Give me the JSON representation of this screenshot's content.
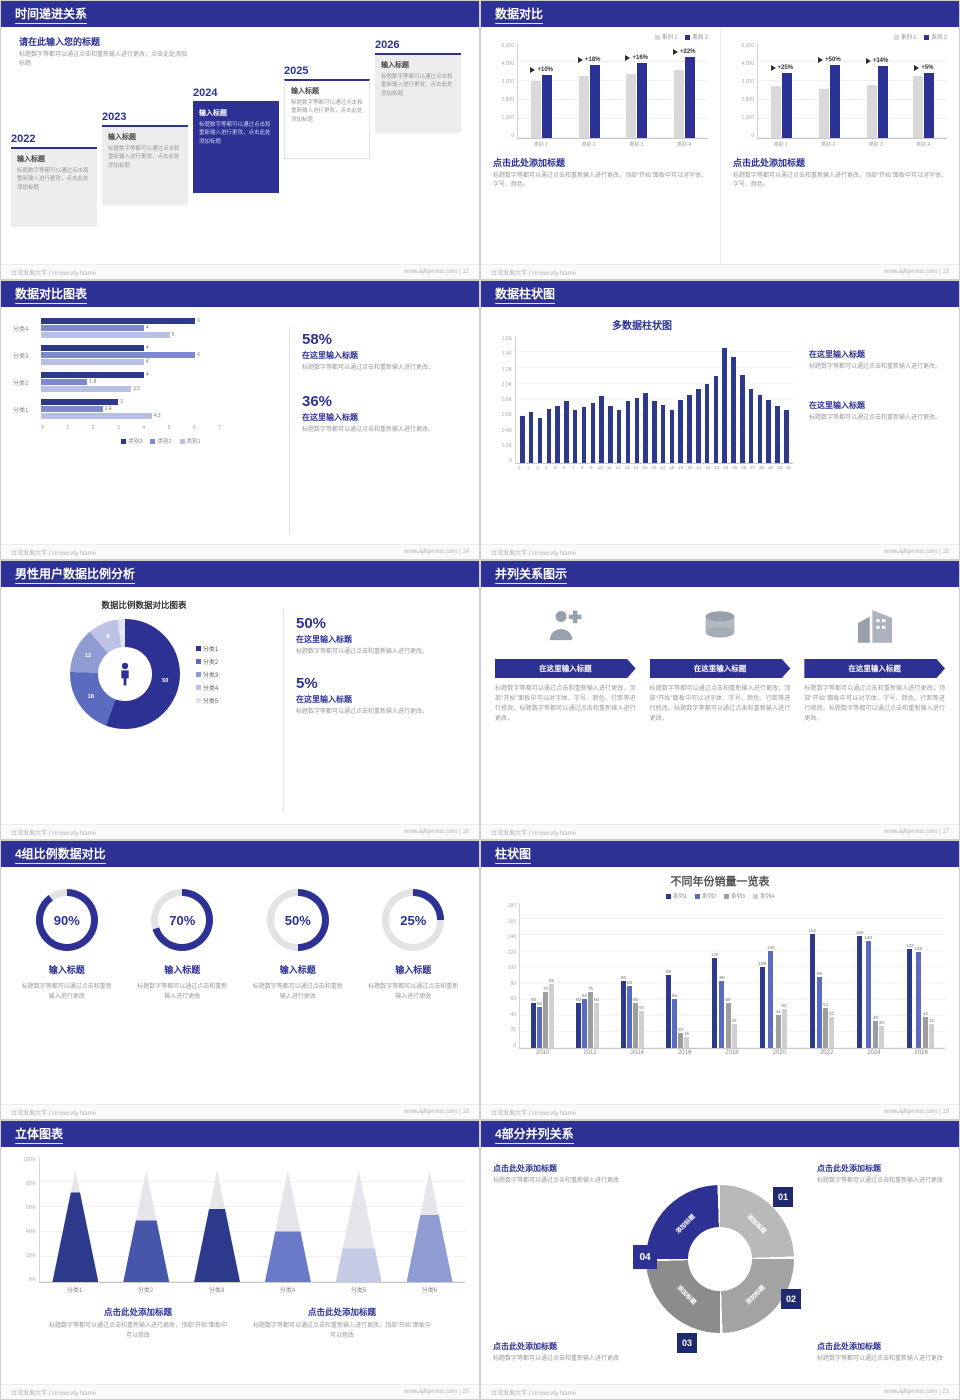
{
  "footer": {
    "university": "台湾发展大学 | University Name",
    "site": "www.aptgenius.com",
    "sep": " | "
  },
  "colors": {
    "primary": "#2d3194",
    "bar_navy": "#2d3a8c",
    "bar_blue": "#5b6bbf",
    "bar_periwinkle": "#8f9bd3",
    "bar_light": "#c0c7e6",
    "bar_gray": "#d9d9d9",
    "text_gray": "#999999"
  },
  "slides": {
    "timeline": {
      "page": "12",
      "title": "时间递进关系",
      "heading": "请在此输入您的标题",
      "subheading": "标题数字等都可以通过点击和重新输入进行更改，点击此处添加标题",
      "item_title": "输入标题",
      "item_body": "标题数字等都可以通过点击和重新输入进行更改，点击此处添加标题",
      "years": [
        "2022",
        "2023",
        "2024",
        "2025",
        "2026"
      ]
    },
    "compare": {
      "page": "13",
      "title": "数据对比",
      "charts": [
        {
          "legend": [
            "系列 1",
            "系列 2"
          ],
          "categories": [
            "类别 1",
            "类别 2",
            "类别 3",
            "类别 4"
          ],
          "max": 5000,
          "yticks": [
            "5,000",
            "4,000",
            "3,000",
            "2,000",
            "1,000",
            "0"
          ],
          "series": [
            {
              "name": "系列 1",
              "color": "#d9d9d9",
              "values": [
                3500,
                3800,
                3950,
                4200
              ]
            },
            {
              "name": "系列 2",
              "color": "#2d3194",
              "values": [
                3900,
                4500,
                4600,
                5000
              ]
            }
          ],
          "growth": [
            "+10%",
            "+18%",
            "+16%",
            "+22%"
          ],
          "heading": "点击此处添加标题",
          "body": "标题数字等都可以通过点击和重新输入进行更改，顶部“开始”面板中可以对字体、字号、颜色。"
        },
        {
          "legend": [
            "系列 1",
            "系列 2"
          ],
          "categories": [
            "类别 1",
            "类别 2",
            "类别 3",
            "类别 4"
          ],
          "max": 5000,
          "yticks": [
            "5,000",
            "4,000",
            "3,000",
            "2,000",
            "1,000",
            "0"
          ],
          "series": [
            {
              "name": "系列 1",
              "color": "#d9d9d9",
              "values": [
                3200,
                3000,
                3300,
                3800
              ]
            },
            {
              "name": "系列 2",
              "color": "#2d3194",
              "values": [
                4000,
                4500,
                4420,
                4000
              ]
            }
          ],
          "growth": [
            "+25%",
            "+50%",
            "+34%",
            "+5%"
          ],
          "heading": "点击此处添加标题",
          "body": "标题数字等都可以通过点击和重新输入进行更改，顶部“开始”面板中可以对字体、字号、颜色。"
        }
      ]
    },
    "hbars": {
      "page": "14",
      "title": "数据对比图表",
      "categories": [
        "分类4",
        "分类3",
        "分类2",
        "分类1"
      ],
      "groups": [
        [
          6,
          4,
          5
        ],
        [
          4,
          6,
          4
        ],
        [
          4,
          1.8,
          3.5
        ],
        [
          3,
          2.4,
          4.3
        ]
      ],
      "max": 7,
      "xticks": [
        "0",
        "1",
        "2",
        "3",
        "4",
        "5",
        "6",
        "7"
      ],
      "colors": [
        "#2d3a8c",
        "#7c89cc",
        "#b7bfe4"
      ],
      "legend": [
        "类别3",
        "类别2",
        "类别1"
      ],
      "stats": [
        {
          "pct": "58%",
          "heading": "在这里输入标题",
          "body": "标题数字等都可以通过点击和重新输入进行更改。"
        },
        {
          "pct": "36%",
          "heading": "在这里输入标题",
          "body": "标题数字等都可以通过点击和重新输入进行更改。"
        }
      ]
    },
    "multicol": {
      "page": "15",
      "title": "数据柱状图",
      "chart_title": "多数据柱状图",
      "max": 1600,
      "yticks": [
        "1.6K",
        "1.4K",
        "1.2K",
        "1.0K",
        "0.8K",
        "0.6K",
        "0.4K",
        "0.2K",
        "0"
      ],
      "labels": [
        "1",
        "2",
        "3",
        "4",
        "5",
        "6",
        "7",
        "8",
        "9",
        "10",
        "11",
        "12",
        "13",
        "14",
        "15",
        "16",
        "17",
        "18",
        "19",
        "20",
        "21",
        "22",
        "23",
        "24",
        "25",
        "26",
        "27",
        "28",
        "29",
        "30",
        "31"
      ],
      "values": [
        620,
        680,
        600,
        720,
        760,
        820,
        700,
        740,
        800,
        880,
        760,
        700,
        820,
        860,
        930,
        820,
        770,
        700,
        830,
        900,
        980,
        1050,
        1150,
        1520,
        1400,
        1160,
        980,
        900,
        830,
        760,
        700
      ],
      "bar_color": "#2d3a8c",
      "stats": [
        {
          "heading": "在这里输入标题",
          "body": "标题数字等都可以通过点击和重新输入进行更改。"
        },
        {
          "heading": "在这里输入标题",
          "body": "标题数字等都可以通过点击和重新输入进行更改。"
        }
      ]
    },
    "donut": {
      "page": "16",
      "title": "男性用户数据比例分析",
      "heading": "数据比例数据对比图表",
      "segments": [
        {
          "label": "50",
          "value": 50
        },
        {
          "label": "18",
          "value": 18
        },
        {
          "label": "12",
          "value": 12
        },
        {
          "label": "8",
          "value": 8
        },
        {
          "label": "2",
          "value": 2
        }
      ],
      "colors": [
        "#2d3194",
        "#5b6bbf",
        "#8f9bd3",
        "#bcc3e5",
        "#dfe2f2"
      ],
      "legend": [
        "分类1",
        "分类2",
        "分类3",
        "分类4",
        "分类5"
      ],
      "stats": [
        {
          "pct": "50%",
          "heading": "在这里输入标题",
          "body": "标题数字等都可以通过点击和重新输入进行更改。"
        },
        {
          "pct": "5%",
          "heading": "在这里输入标题",
          "body": "标题数字等都可以通过点击和重新输入进行更改。"
        }
      ]
    },
    "parallel": {
      "page": "17",
      "title": "并列关系图示",
      "items": [
        {
          "icon": "nurse-icon",
          "button": "在这里输入标题",
          "body": "标题数字等都可以通过点击和重新输入进行更改，顶部“开始”面板中可以对字体、字号、颜色、行距等进行修改。标题数字等都可以通过点击和重新输入进行更改。"
        },
        {
          "icon": "cylinder-icon",
          "button": "在这里输入标题",
          "body": "标题数字等都可以通过点击和重新输入进行更改，顶部“开始”面板中可以对字体、字号、颜色、行距等进行修改。标题数字等都可以通过点击和重新输入进行更改。"
        },
        {
          "icon": "building-icon",
          "button": "在这里输入标题",
          "body": "标题数字等都可以通过点击和重新输入进行更改，顶部“开始”面板中可以对字体、字号、颜色、行距等进行修改。标题数字等都可以通过点击和重新输入进行更改。"
        }
      ]
    },
    "gauges": {
      "page": "18",
      "title": "4组比例数据对比",
      "items": [
        {
          "pct": "90%",
          "value": 90,
          "label": "输入标题",
          "body": "标题数字等都可以通过点击和重新输入进行更改"
        },
        {
          "pct": "70%",
          "value": 70,
          "label": "输入标题",
          "body": "标题数字等都可以通过点击和重新输入进行更改"
        },
        {
          "pct": "50%",
          "value": 50,
          "label": "输入标题",
          "body": "标题数字等都可以通过点击和重新输入进行更改"
        },
        {
          "pct": "25%",
          "value": 25,
          "label": "输入标题",
          "body": "标题数字等都可以通过点击和重新输入进行更改"
        }
      ]
    },
    "years": {
      "page": "19",
      "title": "柱状图",
      "chart_title": "不同年份销量一览表",
      "max": 180,
      "yticks": [
        "180",
        "160",
        "140",
        "120",
        "100",
        "80",
        "60",
        "40",
        "20",
        "0"
      ],
      "years": [
        "2010",
        "2012",
        "2014",
        "2016",
        "2018",
        "2020",
        "2022",
        "2024",
        "2026"
      ],
      "colors": [
        "#2d3a8c",
        "#5b6bbf",
        "#9e9e9e",
        "#cfcfcf"
      ],
      "series": [
        {
          "name": "系列1",
          "values": [
            60,
            60,
            90,
            98,
            120,
            108,
            152,
            150,
            132
          ]
        },
        {
          "name": "系列2",
          "values": [
            55,
            65,
            83,
            66,
            90,
            130,
            95,
            143,
            128
          ]
        },
        {
          "name": "系列3",
          "values": [
            75,
            75,
            60,
            20,
            60,
            44,
            53,
            36,
            42
          ]
        },
        {
          "name": "系列4",
          "values": [
            85,
            60,
            50,
            15,
            32,
            52,
            42,
            30,
            32
          ]
        }
      ]
    },
    "cones": {
      "page": "20",
      "title": "立体图表",
      "yticks": [
        "100%",
        "80%",
        "60%",
        "40%",
        "20%",
        "0%"
      ],
      "categories": [
        "分类1",
        "分类2",
        "分类3",
        "分类4",
        "分类5",
        "分类6"
      ],
      "fills": [
        80,
        55,
        65,
        45,
        30,
        60
      ],
      "colors": [
        "#2d3a8c",
        "#4656ab",
        "#2d3a8c",
        "#6b79c9",
        "#c5cbe5",
        "#8f9bd3"
      ],
      "stats": [
        {
          "heading": "点击此处添加标题",
          "body": "标题数字等都可以通过点击和重新输入进行更改，顶部“开始”面板中可以修改"
        },
        {
          "heading": "点击此处添加标题",
          "body": "标题数字等都可以通过点击和重新输入进行更改，顶部“开始”面板中可以修改"
        }
      ]
    },
    "circle4": {
      "page": "21",
      "title": "4部分并列关系",
      "segment_label": "添加标题",
      "numbers": [
        "01",
        "02",
        "03",
        "04"
      ],
      "stats": [
        {
          "heading": "点击此处添加标题",
          "body": "标题数字等都可以通过点击和重新输入进行更改"
        },
        {
          "heading": "点击此处添加标题",
          "body": "标题数字等都可以通过点击和重新输入进行更改"
        },
        {
          "heading": "点击此处添加标题",
          "body": "标题数字等都可以通过点击和重新输入进行更改"
        },
        {
          "heading": "点击此处添加标题",
          "body": "标题数字等都可以通过点击和重新输入进行更改"
        }
      ]
    }
  }
}
